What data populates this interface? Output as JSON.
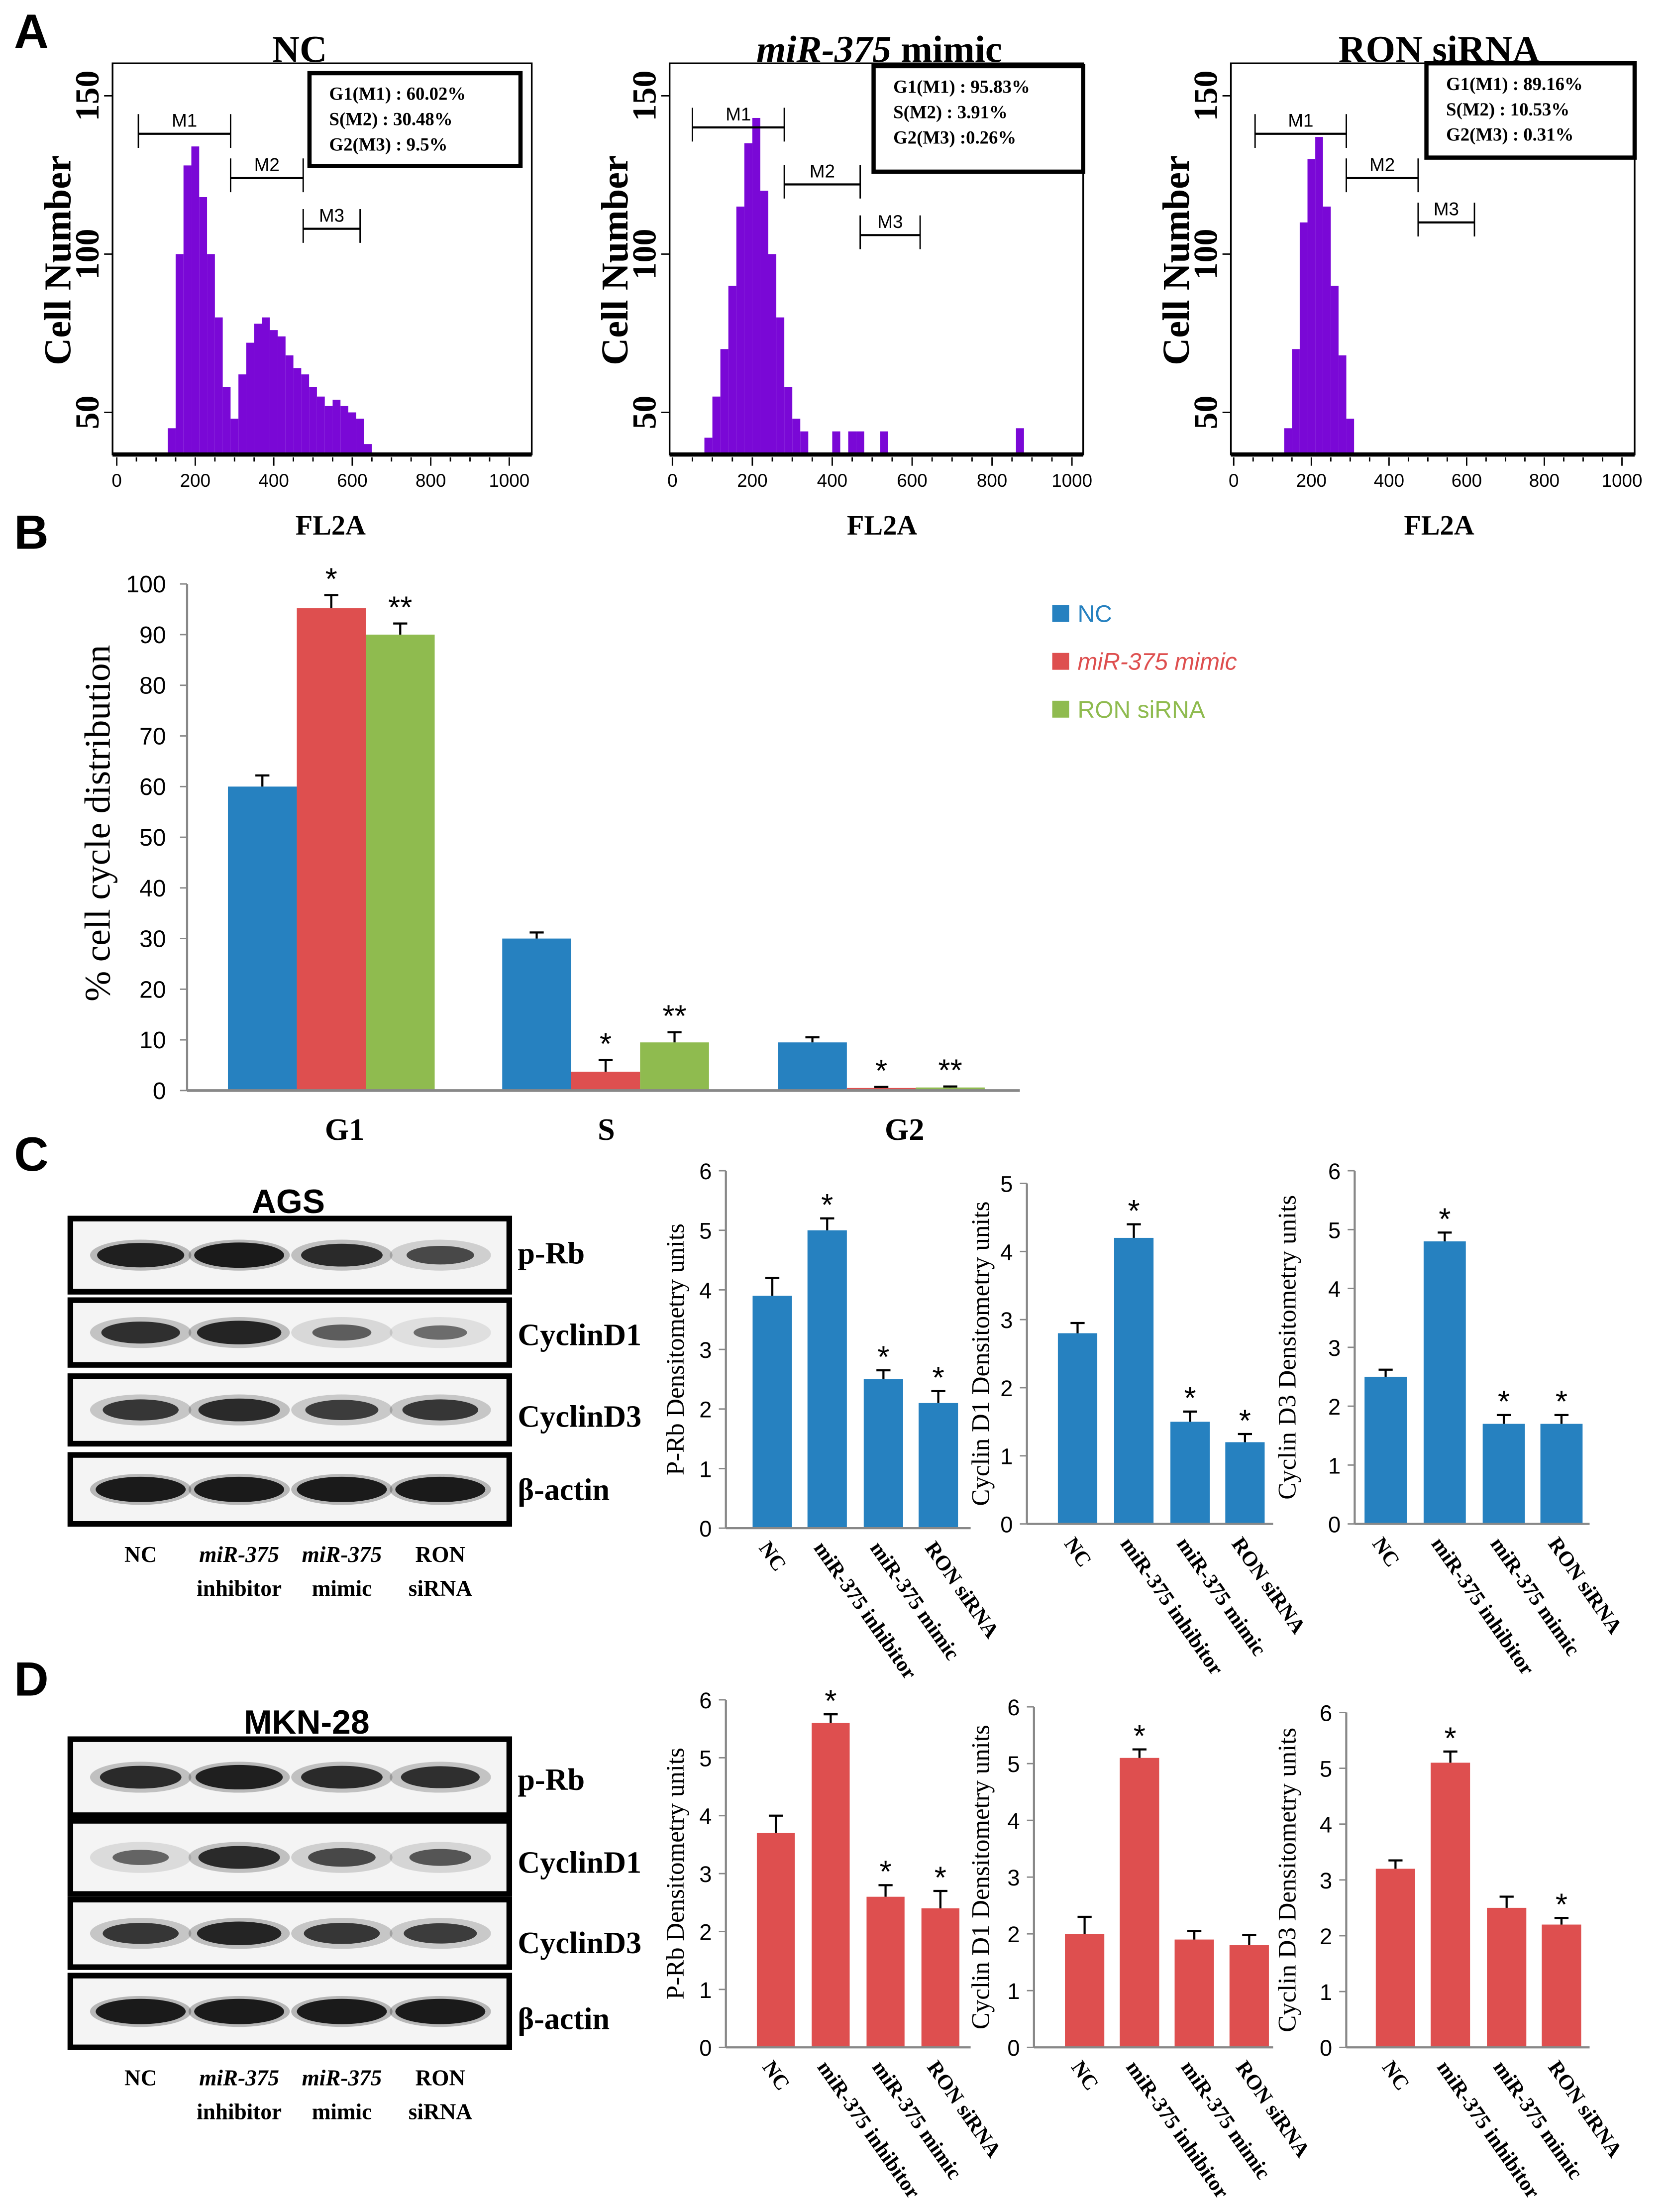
{
  "panel_labels": {
    "a": "A",
    "b": "B",
    "c": "C",
    "d": "D"
  },
  "chart_data": [
    {
      "type": "histogram",
      "title_parts": [
        {
          "text": "NC",
          "italic": false
        }
      ],
      "xlabel": "FL2A",
      "ylabel": "Cell Number",
      "xlim": [
        0,
        1000
      ],
      "xticks": [
        0,
        200,
        400,
        600,
        800,
        1000
      ],
      "yticks": [
        50,
        100,
        150
      ],
      "stats": [
        "G1(M1) : 60.02%",
        "S(M2) :  30.48%",
        "G2(M3) : 9.5%"
      ],
      "markers": [
        {
          "label": "M1",
          "range": [
            55,
            290
          ],
          "level": 138
        },
        {
          "label": "M2",
          "range": [
            290,
            475
          ],
          "level": 124
        },
        {
          "label": "M3",
          "range": [
            475,
            620
          ],
          "level": 108
        }
      ],
      "bins": [
        [
          140,
          45
        ],
        [
          160,
          100
        ],
        [
          180,
          128
        ],
        [
          200,
          134
        ],
        [
          220,
          118
        ],
        [
          240,
          100
        ],
        [
          260,
          80
        ],
        [
          280,
          58
        ],
        [
          300,
          48
        ],
        [
          320,
          62
        ],
        [
          340,
          72
        ],
        [
          360,
          78
        ],
        [
          380,
          80
        ],
        [
          400,
          76
        ],
        [
          420,
          74
        ],
        [
          440,
          68
        ],
        [
          460,
          64
        ],
        [
          480,
          62
        ],
        [
          500,
          58
        ],
        [
          520,
          55
        ],
        [
          540,
          52
        ],
        [
          560,
          54
        ],
        [
          580,
          52
        ],
        [
          600,
          50
        ],
        [
          620,
          48
        ],
        [
          640,
          40
        ]
      ]
    },
    {
      "type": "histogram",
      "title_parts": [
        {
          "text": "miR-375",
          "italic": true
        },
        {
          "text": " mimic",
          "italic": false
        }
      ],
      "xlabel": "FL2A",
      "ylabel": "Cell Number",
      "xlim": [
        0,
        1000
      ],
      "xticks": [
        0,
        200,
        400,
        600,
        800,
        1000
      ],
      "yticks": [
        50,
        100,
        150
      ],
      "stats": [
        "G1(M1) : 95.83%",
        "S(M2) :  3.91%",
        "G2(M3) :0.26%"
      ],
      "markers": [
        {
          "label": "M1",
          "range": [
            50,
            280
          ],
          "level": 140
        },
        {
          "label": "M2",
          "range": [
            280,
            470
          ],
          "level": 122
        },
        {
          "label": "M3",
          "range": [
            470,
            620
          ],
          "level": 106
        }
      ],
      "bins": [
        [
          90,
          42
        ],
        [
          110,
          55
        ],
        [
          130,
          70
        ],
        [
          150,
          90
        ],
        [
          170,
          115
        ],
        [
          190,
          135
        ],
        [
          210,
          143
        ],
        [
          230,
          120
        ],
        [
          250,
          100
        ],
        [
          270,
          80
        ],
        [
          290,
          58
        ],
        [
          310,
          48
        ],
        [
          330,
          44
        ],
        [
          410,
          44
        ],
        [
          450,
          44
        ],
        [
          470,
          44
        ],
        [
          530,
          44
        ],
        [
          870,
          45
        ]
      ]
    },
    {
      "type": "histogram",
      "title_parts": [
        {
          "text": "RON siRNA",
          "italic": false
        }
      ],
      "xlabel": "FL2A",
      "ylabel": "Cell Number",
      "xlim": [
        0,
        1000
      ],
      "xticks": [
        0,
        200,
        400,
        600,
        800,
        1000
      ],
      "yticks": [
        50,
        100,
        150
      ],
      "stats": [
        "G1(M1) : 89.16%",
        "S(M2) :  10.53%",
        "G2(M3) : 0.31%"
      ],
      "markers": [
        {
          "label": "M1",
          "range": [
            55,
            290
          ],
          "level": 138
        },
        {
          "label": "M2",
          "range": [
            290,
            475
          ],
          "level": 124
        },
        {
          "label": "M3",
          "range": [
            475,
            620
          ],
          "level": 110
        }
      ],
      "bins": [
        [
          140,
          45
        ],
        [
          160,
          70
        ],
        [
          180,
          110
        ],
        [
          200,
          130
        ],
        [
          220,
          137
        ],
        [
          240,
          115
        ],
        [
          260,
          90
        ],
        [
          280,
          68
        ],
        [
          300,
          48
        ]
      ]
    },
    {
      "type": "bar",
      "categories": [
        "G1",
        "S",
        "G2"
      ],
      "ylabel": "% cell cycle distribution",
      "xlabel": "",
      "ylim": [
        0,
        100
      ],
      "yticks": [
        0,
        10,
        20,
        30,
        40,
        50,
        60,
        70,
        80,
        90,
        100
      ],
      "legend_position": "top-right",
      "series": [
        {
          "name": "NC",
          "color": "#2681c0",
          "italic": false,
          "values": [
            60,
            30,
            9.5
          ],
          "errors": [
            2.2,
            1.2,
            1.0
          ],
          "marks": [
            "",
            "",
            ""
          ]
        },
        {
          "name": "miR-375 mimic",
          "color": "#de4f4f",
          "italic": true,
          "values": [
            95.2,
            3.7,
            0.5
          ],
          "errors": [
            2.6,
            2.3,
            0.2
          ],
          "marks": [
            "*",
            "*",
            "*"
          ]
        },
        {
          "name": "RON siRNA",
          "color": "#8fbb4f",
          "italic": false,
          "values": [
            90,
            9.5,
            0.6
          ],
          "errors": [
            2.2,
            2.0,
            0.2
          ],
          "marks": [
            "**",
            "**",
            "**"
          ]
        }
      ]
    },
    {
      "type": "bar",
      "panel": "C",
      "ylabel": "P-Rb Densitometry units",
      "ylim": [
        0,
        6
      ],
      "yticks": [
        0,
        1,
        2,
        3,
        4,
        5,
        6
      ],
      "color": "#2681c0",
      "categories": [
        "NC",
        "miR-375 inhibitor",
        "miR-375 mimic",
        "RON siRNA"
      ],
      "values": [
        3.9,
        5.0,
        2.5,
        2.1
      ],
      "errors": [
        0.3,
        0.2,
        0.15,
        0.2
      ],
      "marks": [
        "",
        "*",
        "*",
        "*"
      ]
    },
    {
      "type": "bar",
      "panel": "C",
      "ylabel": "Cyclin D1 Densitometry units",
      "ylim": [
        0,
        5
      ],
      "yticks": [
        0,
        1,
        2,
        3,
        4,
        5
      ],
      "color": "#2681c0",
      "categories": [
        "NC",
        "miR-375 inhibitor",
        "miR-375 mimic",
        "RON siRNA"
      ],
      "values": [
        2.8,
        4.2,
        1.5,
        1.2
      ],
      "errors": [
        0.15,
        0.2,
        0.15,
        0.12
      ],
      "marks": [
        "",
        "*",
        "*",
        "*"
      ]
    },
    {
      "type": "bar",
      "panel": "C",
      "ylabel": "Cyclin D3 Densitometry units",
      "ylim": [
        0,
        6
      ],
      "yticks": [
        0,
        1,
        2,
        3,
        4,
        5,
        6
      ],
      "color": "#2681c0",
      "categories": [
        "NC",
        "miR-375 inhibitor",
        "miR-375 mimic",
        "RON siRNA"
      ],
      "values": [
        2.5,
        4.8,
        1.7,
        1.7
      ],
      "errors": [
        0.12,
        0.15,
        0.15,
        0.15
      ],
      "marks": [
        "",
        "*",
        "*",
        "*"
      ]
    },
    {
      "type": "bar",
      "panel": "D",
      "ylabel": "P-Rb Densitometry units",
      "ylim": [
        0,
        6
      ],
      "yticks": [
        0,
        1,
        2,
        3,
        4,
        5,
        6
      ],
      "color": "#de4f4f",
      "categories": [
        "NC",
        "miR-375 inhibitor",
        "miR-375 mimic",
        "RON siRNA"
      ],
      "values": [
        3.7,
        5.6,
        2.6,
        2.4
      ],
      "errors": [
        0.3,
        0.15,
        0.2,
        0.3
      ],
      "marks": [
        "",
        "*",
        "*",
        "*"
      ]
    },
    {
      "type": "bar",
      "panel": "D",
      "ylabel": "Cyclin D1 Densitometry units",
      "ylim": [
        0,
        6
      ],
      "yticks": [
        0,
        1,
        2,
        3,
        4,
        5,
        6
      ],
      "color": "#de4f4f",
      "categories": [
        "NC",
        "miR-375 inhibitor",
        "miR-375 mimic",
        "RON siRNA"
      ],
      "values": [
        2.0,
        5.1,
        1.9,
        1.8
      ],
      "errors": [
        0.3,
        0.15,
        0.15,
        0.18
      ],
      "marks": [
        "",
        "*",
        "",
        ""
      ]
    },
    {
      "type": "bar",
      "panel": "D",
      "ylabel": "Cyclin D3 Densitometry units",
      "ylim": [
        0,
        6
      ],
      "yticks": [
        0,
        1,
        2,
        3,
        4,
        5,
        6
      ],
      "color": "#de4f4f",
      "categories": [
        "NC",
        "miR-375 inhibitor",
        "miR-375 mimic",
        "RON siRNA"
      ],
      "values": [
        3.2,
        5.1,
        2.5,
        2.2
      ],
      "errors": [
        0.15,
        0.2,
        0.2,
        0.12
      ],
      "marks": [
        "",
        "*",
        "",
        "*"
      ]
    }
  ],
  "blots": [
    {
      "title": "AGS",
      "proteins": [
        "p-Rb",
        "CyclinD1",
        "CyclinD3",
        "β-actin"
      ],
      "lanes": [
        {
          "line1": "NC",
          "line2": ""
        },
        {
          "line1": "miR-375",
          "line2": "inhibitor"
        },
        {
          "line1": "miR-375",
          "line2": "mimic"
        },
        {
          "line1": "RON",
          "line2": "siRNA"
        }
      ],
      "band_intensity": [
        [
          0.95,
          1.0,
          0.85,
          0.6
        ],
        [
          0.8,
          0.9,
          0.45,
          0.35
        ],
        [
          0.75,
          0.85,
          0.7,
          0.75
        ],
        [
          1.0,
          1.0,
          1.0,
          1.0
        ]
      ]
    },
    {
      "title": "MKN-28",
      "proteins": [
        "p-Rb",
        "CyclinD1",
        "CyclinD3",
        "β-actin"
      ],
      "lanes": [
        {
          "line1": "NC",
          "line2": ""
        },
        {
          "line1": "miR-375",
          "line2": "inhibitor"
        },
        {
          "line1": "miR-375",
          "line2": "mimic"
        },
        {
          "line1": "RON",
          "line2": "siRNA"
        }
      ],
      "band_intensity": [
        [
          0.85,
          0.95,
          0.85,
          0.8
        ],
        [
          0.4,
          0.85,
          0.6,
          0.5
        ],
        [
          0.75,
          0.9,
          0.75,
          0.7
        ],
        [
          1.0,
          1.0,
          1.0,
          1.0
        ]
      ]
    }
  ]
}
